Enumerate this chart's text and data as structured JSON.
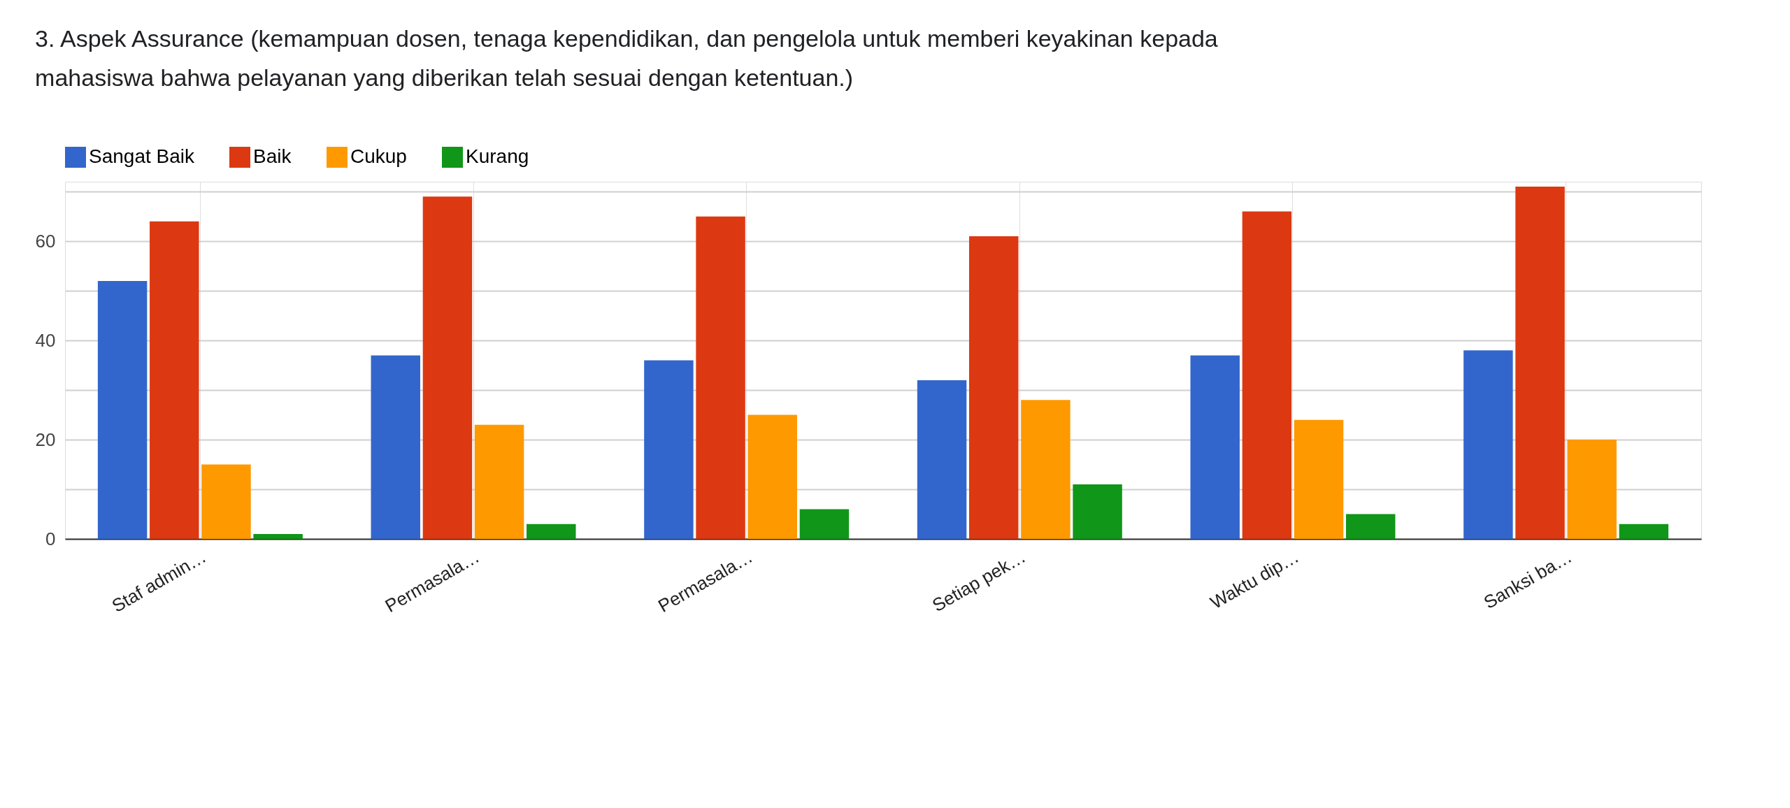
{
  "chart_data": {
    "type": "bar",
    "title": "3. Aspek Assurance (kemampuan dosen, tenaga kependidikan, dan pengelola untuk memberi keyakinan kepada mahasiswa bahwa pelayanan yang diberikan telah sesuai dengan ketentuan.)",
    "categories": [
      "Staf admin…",
      "Permasala…",
      "Permasala…",
      "Setiap pek…",
      "Waktu dip…",
      "Sanksi ba…"
    ],
    "series": [
      {
        "name": "Sangat Baik",
        "color": "#3366cc",
        "values": [
          52,
          37,
          36,
          32,
          37,
          38
        ]
      },
      {
        "name": "Baik",
        "color": "#dc3912",
        "values": [
          64,
          69,
          65,
          61,
          66,
          71
        ]
      },
      {
        "name": "Cukup",
        "color": "#ff9900",
        "values": [
          15,
          23,
          25,
          28,
          24,
          20
        ]
      },
      {
        "name": "Kurang",
        "color": "#109618",
        "values": [
          1,
          3,
          6,
          11,
          5,
          3
        ]
      }
    ],
    "ylim": [
      0,
      72
    ],
    "yticks": [
      0,
      {
        "value": 10,
        "label": null
      },
      20,
      {
        "value": 30,
        "label": null
      },
      40,
      {
        "value": 50,
        "label": null
      },
      60,
      {
        "value": 70,
        "label": null
      }
    ],
    "grid": true,
    "legend": "top left"
  }
}
